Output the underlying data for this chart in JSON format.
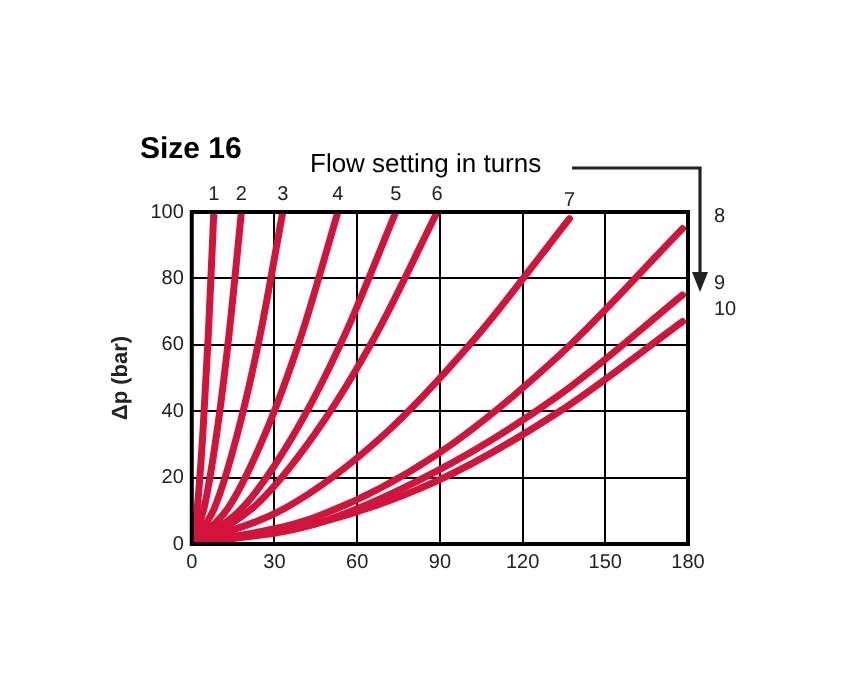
{
  "chart_data": {
    "type": "line",
    "title": "Size 16",
    "ylabel": "Δp (bar)",
    "annotations": [
      "Flow setting in turns"
    ],
    "xlim": [
      0,
      180
    ],
    "xticks": [
      0,
      30,
      60,
      90,
      120,
      150,
      180
    ],
    "ylim": [
      0,
      100
    ],
    "yticks": [
      0,
      20,
      40,
      60,
      80,
      100
    ],
    "grid": true,
    "legend": false,
    "marker": "none",
    "line_style": "solid",
    "series": [
      {
        "name": "1",
        "color": "#d2143a",
        "x": [
          0,
          2,
          4,
          6,
          8
        ],
        "values": [
          0,
          11,
          33,
          63,
          100
        ]
      },
      {
        "name": "2",
        "color": "#d2143a",
        "x": [
          0,
          4.5,
          9,
          13.5,
          18
        ],
        "values": [
          0,
          11,
          33,
          63,
          100
        ]
      },
      {
        "name": "3",
        "color": "#d2143a",
        "x": [
          0,
          8.3,
          16.5,
          24.8,
          33
        ],
        "values": [
          0,
          11,
          33,
          63,
          100
        ]
      },
      {
        "name": "4",
        "color": "#d2143a",
        "x": [
          0,
          13.3,
          26.5,
          39.8,
          53
        ],
        "values": [
          0,
          11,
          33,
          63,
          100
        ]
      },
      {
        "name": "5",
        "color": "#d2143a",
        "x": [
          0,
          18.5,
          37,
          55.5,
          74
        ],
        "values": [
          0,
          11,
          33,
          63,
          100
        ]
      },
      {
        "name": "6",
        "color": "#d2143a",
        "x": [
          0,
          22.3,
          44.5,
          66.8,
          89
        ],
        "values": [
          0,
          11,
          33,
          63,
          100
        ]
      },
      {
        "name": "7",
        "color": "#d2143a",
        "x": [
          0,
          34.3,
          68.5,
          102.8,
          137
        ],
        "values": [
          0,
          11,
          32,
          62,
          98
        ]
      },
      {
        "name": "8",
        "color": "#d2143a",
        "x": [
          0,
          44.5,
          89,
          133.5,
          178
        ],
        "values": [
          0,
          8,
          27,
          57,
          95
        ]
      },
      {
        "name": "9",
        "color": "#d2143a",
        "x": [
          0,
          44.5,
          89,
          133.5,
          178
        ],
        "values": [
          0,
          6,
          22,
          45,
          75
        ]
      },
      {
        "name": "10",
        "color": "#d2143a",
        "x": [
          0,
          44.5,
          89,
          133.5,
          178
        ],
        "values": [
          0,
          6,
          19,
          40,
          67
        ]
      }
    ]
  }
}
